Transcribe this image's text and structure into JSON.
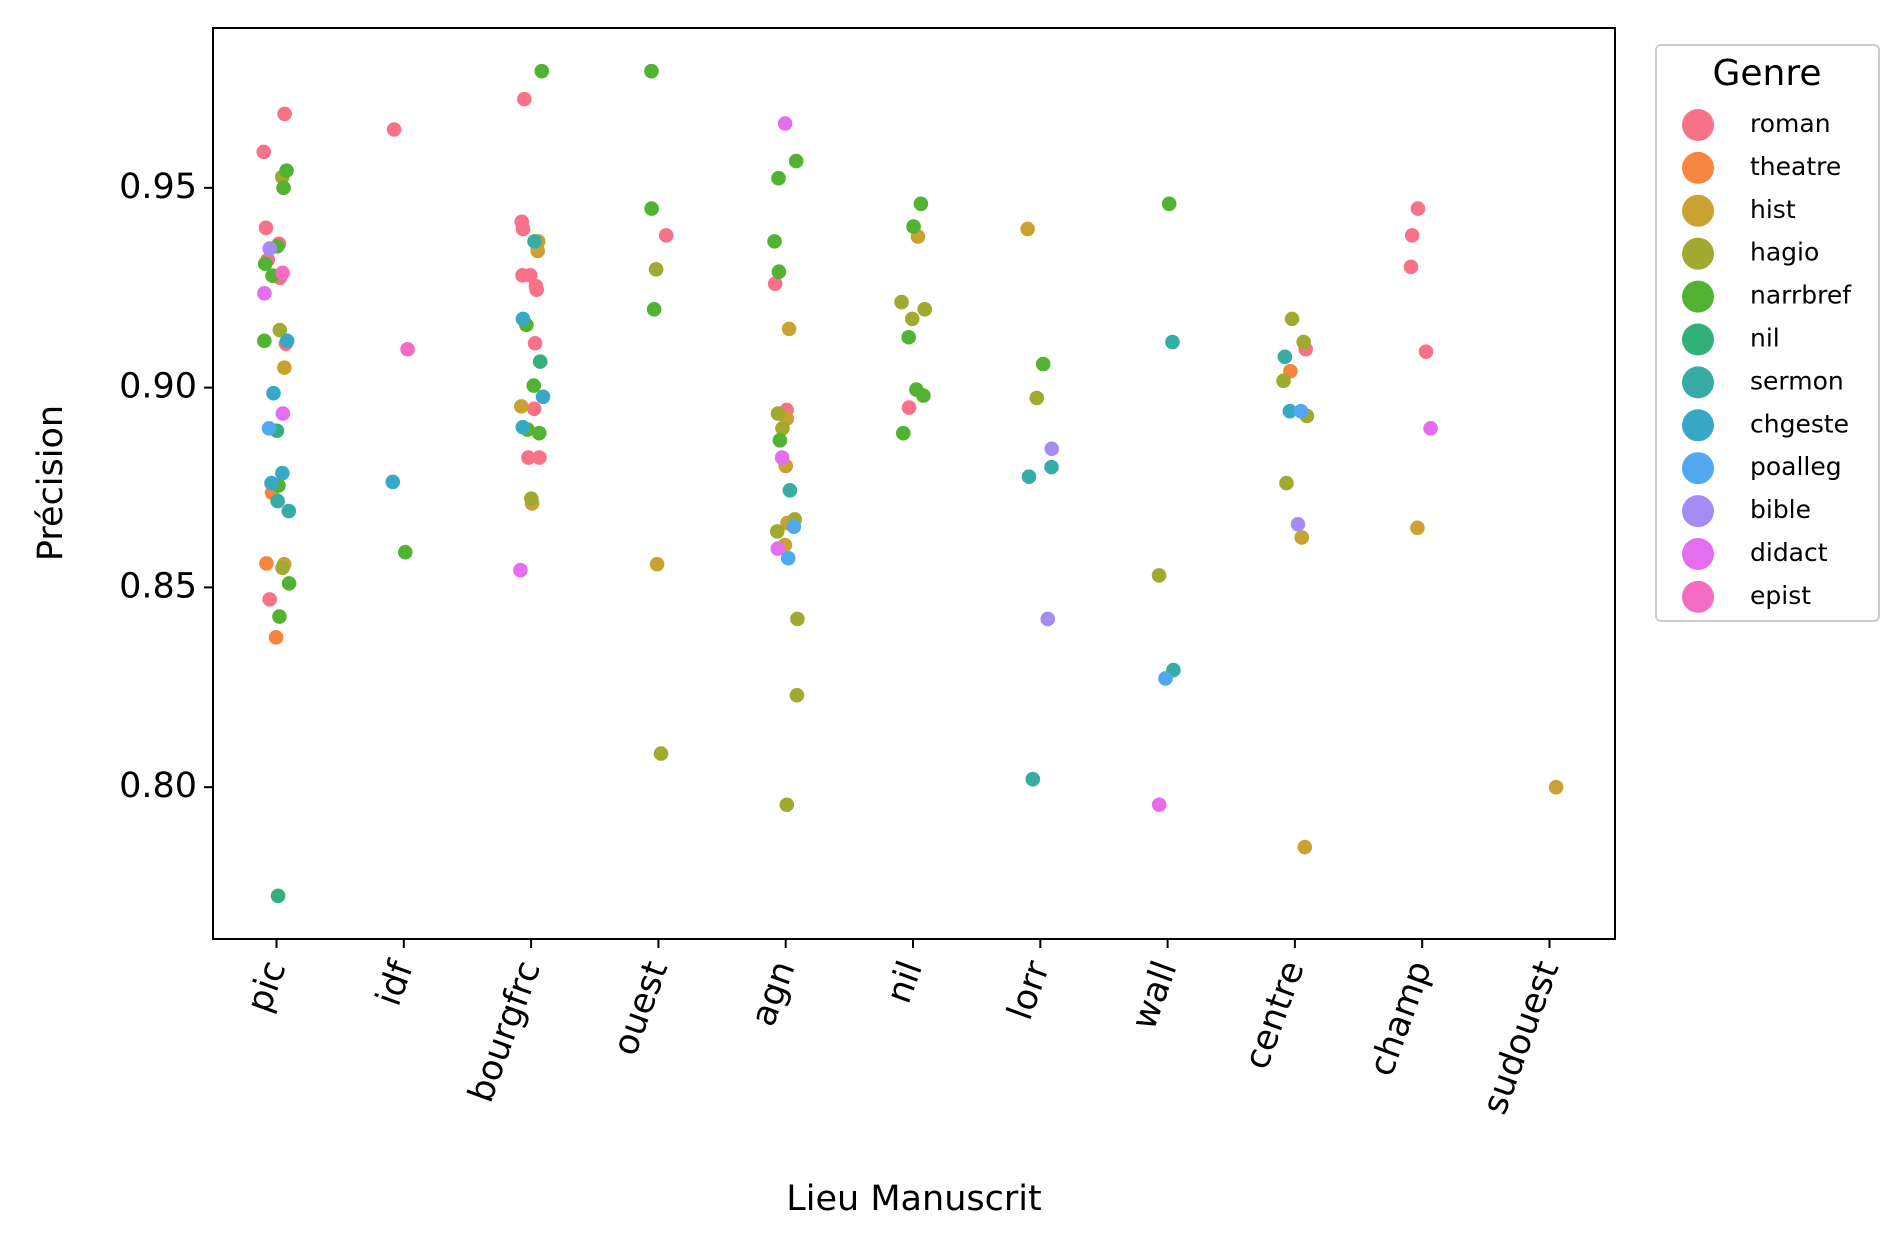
{
  "chart_data": {
    "type": "strip",
    "x_label": "Lieu Manuscrit",
    "y_label": "Précision",
    "legend_title": "Genre",
    "legend": "outside upper right",
    "categories": [
      "pic",
      "idf",
      "bourgfrc",
      "ouest",
      "agn",
      "nil",
      "lorr",
      "wall",
      "centre",
      "champ",
      "sudouest"
    ],
    "ylim": [
      0.762,
      0.99
    ],
    "yticks": [
      {
        "value": 0.8,
        "label": "0.80"
      },
      0.85,
      {
        "value": 0.9,
        "label": "0.90"
      },
      0.95
    ],
    "series": [
      {
        "name": "roman",
        "color": "#f77189",
        "x": [
          "pic",
          "pic",
          "pic",
          "pic",
          "pic",
          "pic",
          "pic",
          "pic",
          "idf",
          "bourgfrc",
          "bourgfrc",
          "bourgfrc",
          "bourgfrc",
          "bourgfrc",
          "bourgfrc",
          "bourgfrc",
          "bourgfrc",
          "bourgfrc",
          "bourgfrc",
          "bourgfrc",
          "ouest",
          "agn",
          "agn",
          "nil",
          "centre",
          "champ",
          "champ",
          "champ",
          "champ"
        ],
        "values": [
          0.959,
          0.9685,
          0.94,
          0.936,
          0.932,
          0.9275,
          0.911,
          0.847,
          0.9646,
          0.9722,
          0.9415,
          0.9397,
          0.9281,
          0.9281,
          0.9254,
          0.9245,
          0.9111,
          0.8947,
          0.8825,
          0.8825,
          0.9381,
          0.926,
          0.8944,
          0.895,
          0.9096,
          0.9448,
          0.9381,
          0.9302,
          0.909
        ]
      },
      {
        "name": "theatre",
        "color": "#f5853f",
        "x": [
          "pic",
          "pic",
          "pic",
          "centre"
        ],
        "values": [
          0.8737,
          0.856,
          0.8375,
          0.9041
        ]
      },
      {
        "name": "hist",
        "color": "#c9a232",
        "x": [
          "pic",
          "pic",
          "bourgfrc",
          "bourgfrc",
          "bourgfrc",
          "bourgfrc",
          "ouest",
          "agn",
          "agn",
          "agn",
          "agn",
          "agn",
          "nil",
          "lorr",
          "centre",
          "centre",
          "champ",
          "sudouest"
        ],
        "values": [
          0.905,
          0.8558,
          0.9366,
          0.9342,
          0.8953,
          0.871,
          0.8558,
          0.9147,
          0.8922,
          0.8804,
          0.8661,
          0.8606,
          0.9378,
          0.9397,
          0.8625,
          0.785,
          0.8649,
          0.8
        ]
      },
      {
        "name": "hagio",
        "color": "#a0a930",
        "x": [
          "pic",
          "pic",
          "pic",
          "bourgfrc",
          "ouest",
          "ouest",
          "agn",
          "agn",
          "agn",
          "agn",
          "agn",
          "agn",
          "agn",
          "nil",
          "nil",
          "nil",
          "lorr",
          "wall",
          "centre",
          "centre",
          "centre",
          "centre",
          "centre"
        ],
        "values": [
          0.9527,
          0.9144,
          0.8549,
          0.8722,
          0.9296,
          0.8084,
          0.8935,
          0.8898,
          0.867,
          0.864,
          0.8421,
          0.823,
          0.7956,
          0.9214,
          0.9196,
          0.9172,
          0.8974,
          0.853,
          0.9172,
          0.9114,
          0.9017,
          0.8929,
          0.8761
        ]
      },
      {
        "name": "narrbref",
        "color": "#52b231",
        "x": [
          "pic",
          "pic",
          "pic",
          "pic",
          "pic",
          "pic",
          "pic",
          "pic",
          "pic",
          "idf",
          "bourgfrc",
          "bourgfrc",
          "bourgfrc",
          "bourgfrc",
          "bourgfrc",
          "ouest",
          "ouest",
          "ouest",
          "agn",
          "agn",
          "agn",
          "agn",
          "agn",
          "nil",
          "nil",
          "nil",
          "nil",
          "nil",
          "nil",
          "lorr",
          "wall"
        ],
        "values": [
          0.9543,
          0.95,
          0.9354,
          0.931,
          0.928,
          0.9117,
          0.8755,
          0.851,
          0.8427,
          0.8588,
          0.9792,
          0.9157,
          0.9005,
          0.8895,
          0.8886,
          0.9792,
          0.9448,
          0.9196,
          0.9567,
          0.9524,
          0.9366,
          0.929,
          0.8868,
          0.946,
          0.9403,
          0.9126,
          0.8995,
          0.898,
          0.8886,
          0.9059,
          0.946
        ]
      },
      {
        "name": "nil",
        "color": "#33b07a",
        "x": [
          "pic",
          "pic",
          "bourgfrc"
        ],
        "values": [
          0.8892,
          0.7728,
          0.9065
        ]
      },
      {
        "name": "sermon",
        "color": "#36ada4",
        "x": [
          "pic",
          "pic",
          "bourgfrc",
          "agn",
          "lorr",
          "lorr",
          "lorr",
          "wall",
          "wall",
          "centre"
        ],
        "values": [
          0.8716,
          0.8691,
          0.9366,
          0.8743,
          0.8801,
          0.8777,
          0.802,
          0.9114,
          0.8293,
          0.9077
        ]
      },
      {
        "name": "chgeste",
        "color": "#38a9c5",
        "x": [
          "pic",
          "pic",
          "pic",
          "pic",
          "idf",
          "bourgfrc",
          "bourgfrc",
          "bourgfrc",
          "centre"
        ],
        "values": [
          0.8986,
          0.9117,
          0.8786,
          0.8761,
          0.8764,
          0.9172,
          0.8977,
          0.8901,
          0.8941
        ]
      },
      {
        "name": "poalleg",
        "color": "#4fa8f0",
        "x": [
          "pic",
          "agn",
          "agn",
          "wall",
          "centre"
        ],
        "values": [
          0.8898,
          0.8652,
          0.8573,
          0.8272,
          0.8941
        ]
      },
      {
        "name": "bible",
        "color": "#a48cf4",
        "x": [
          "pic",
          "lorr",
          "lorr",
          "centre"
        ],
        "values": [
          0.9348,
          0.8847,
          0.8421,
          0.8658
        ]
      },
      {
        "name": "didact",
        "color": "#e56df0",
        "x": [
          "pic",
          "pic",
          "bourgfrc",
          "agn",
          "agn",
          "agn",
          "wall",
          "champ"
        ],
        "values": [
          0.9236,
          0.8935,
          0.8543,
          0.9661,
          0.8825,
          0.8597,
          0.7956,
          0.8898
        ]
      },
      {
        "name": "epist",
        "color": "#f66bc4",
        "x": [
          "pic",
          "idf"
        ],
        "values": [
          0.9287,
          0.9096
        ]
      }
    ]
  }
}
